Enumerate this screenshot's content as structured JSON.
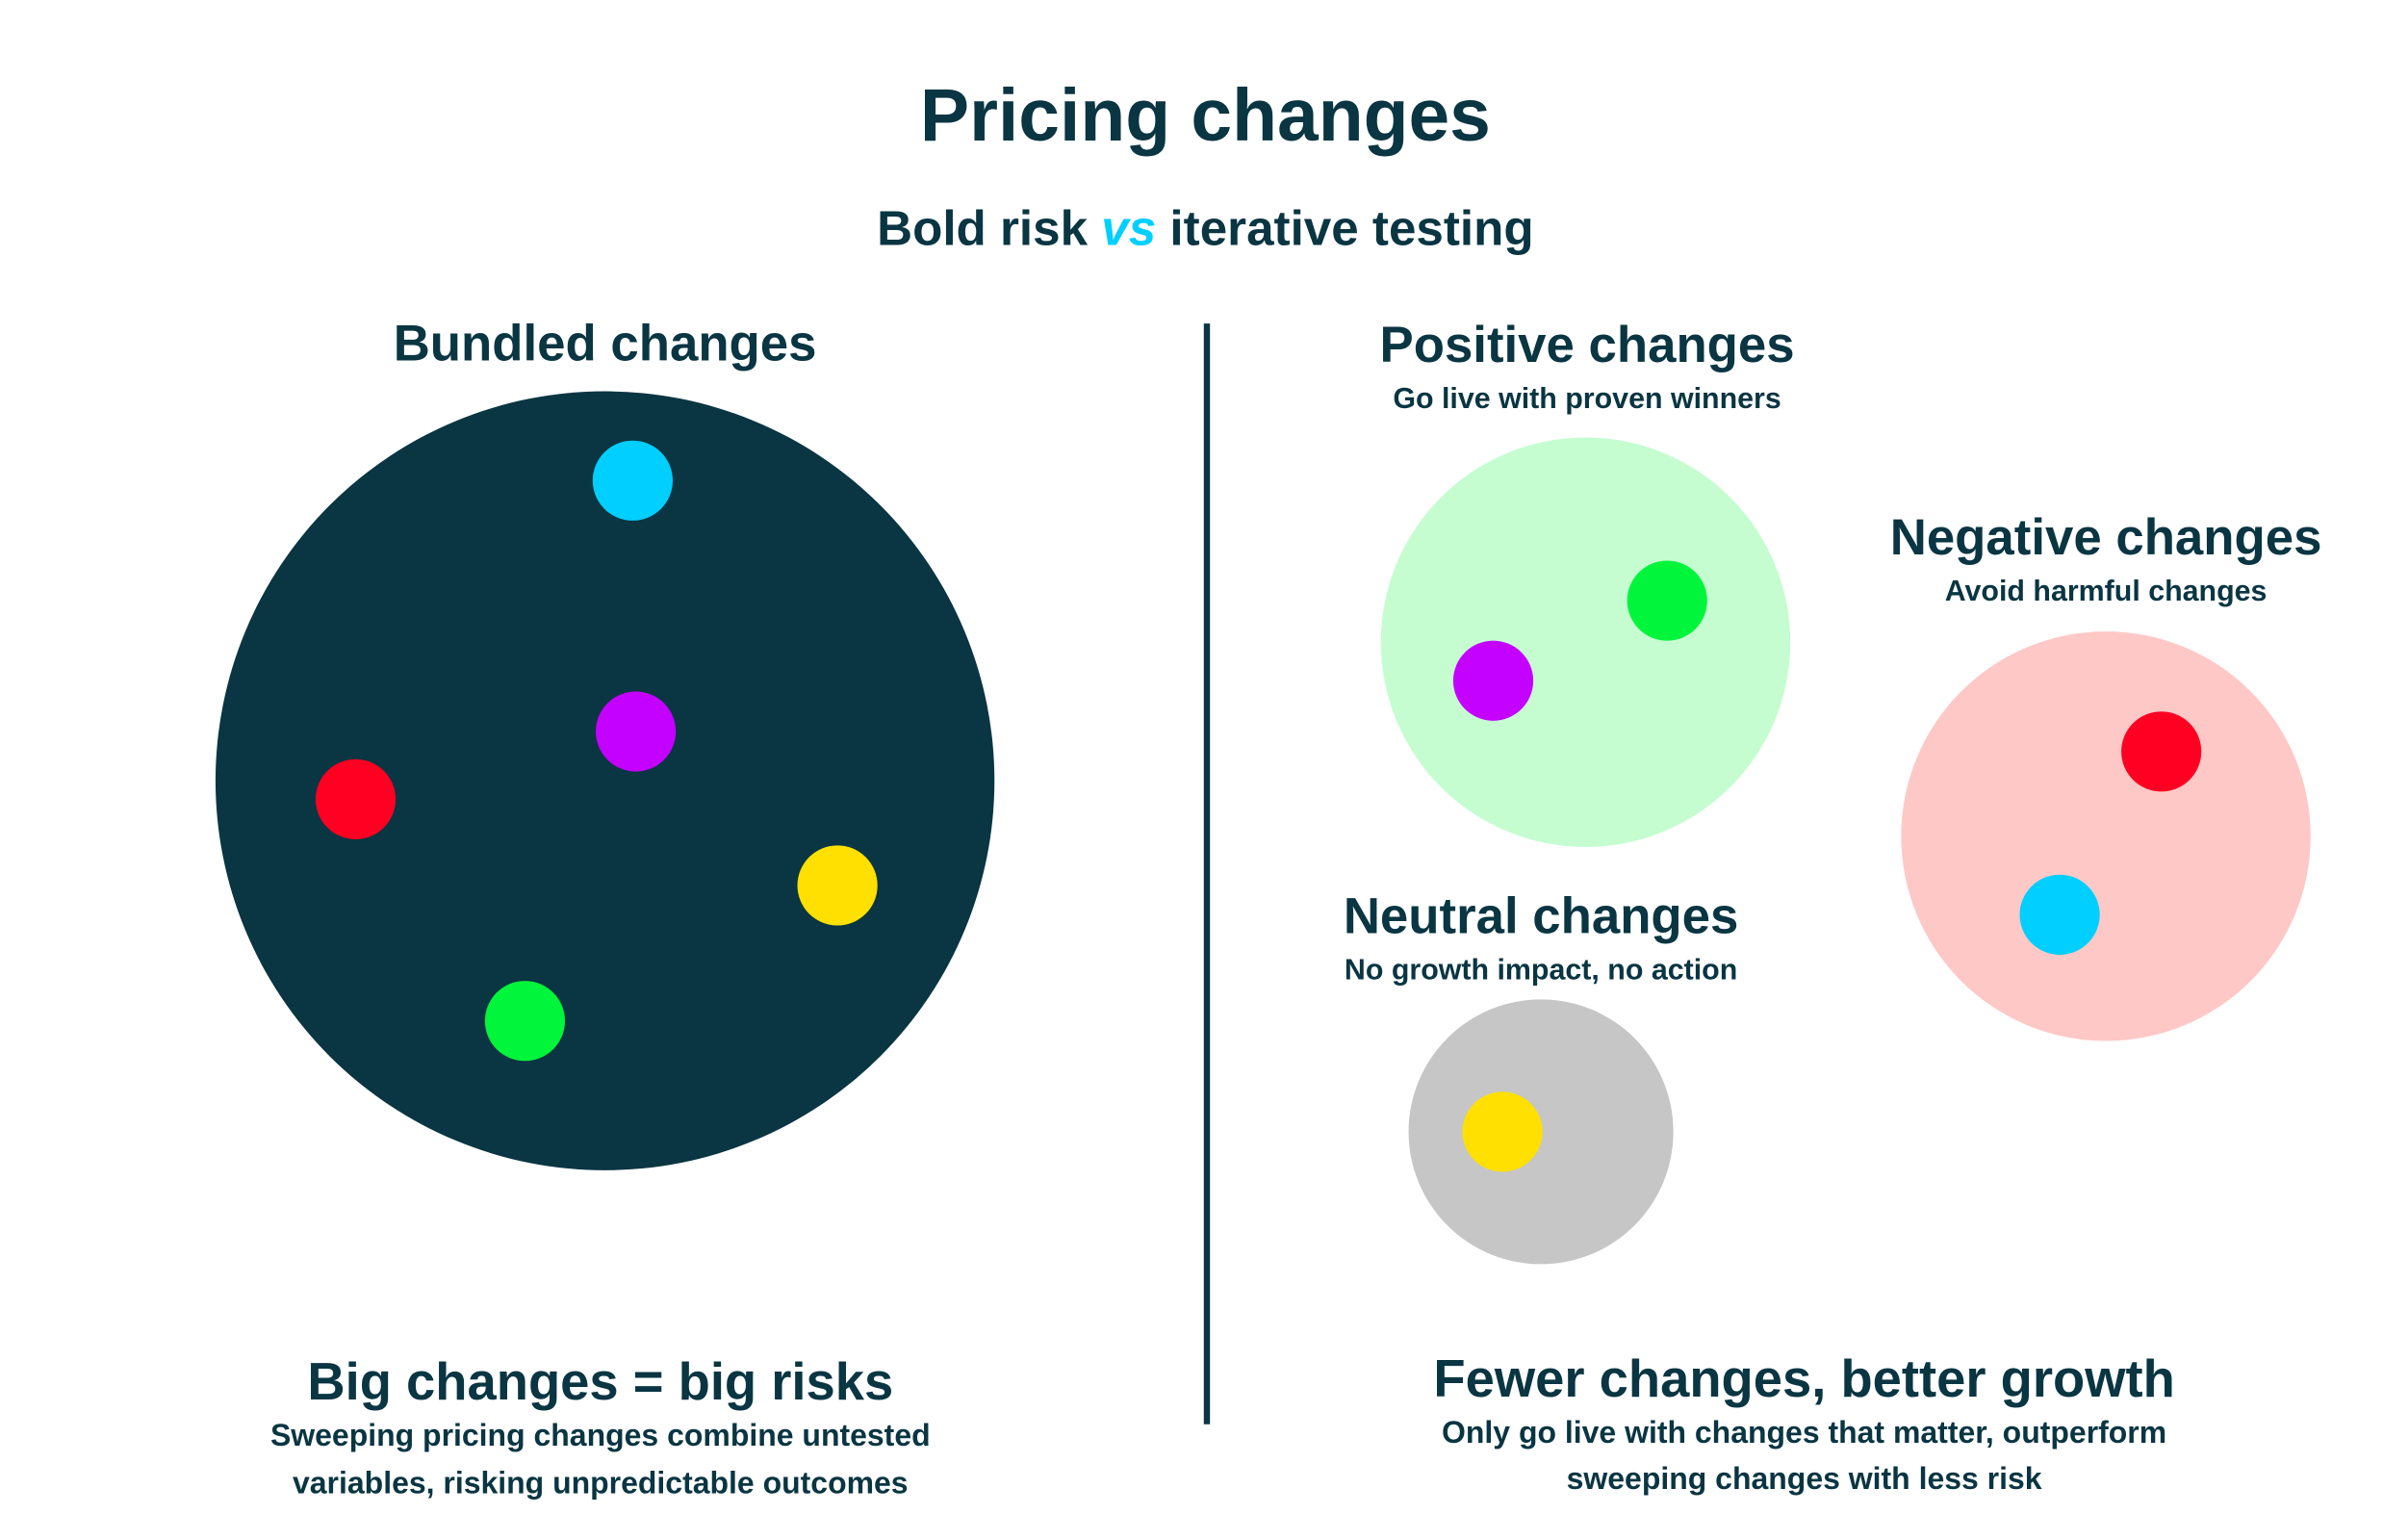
{
  "header": {
    "title": "Pricing changes",
    "subtitle": [
      "Bold risk ",
      "vs",
      " iterative testing"
    ]
  },
  "left": {
    "heading": "Bundled changes",
    "footer": {
      "title": "Big changes = big risks",
      "lines": [
        "Sweeping pricing changes combine untested",
        "variables, risking unpredictable outcomes"
      ]
    }
  },
  "right": {
    "groups": [
      {
        "heading": "Positive changes",
        "caption": "Go live with proven winners"
      },
      {
        "heading": "Negative changes",
        "caption": "Avoid harmful changes"
      },
      {
        "heading": "Neutral changes",
        "caption": "No growth impact, no action"
      }
    ],
    "footer": {
      "title": "Fewer changes, better growth",
      "lines": [
        "Only go live with changes that matter, outperform",
        "sweeping changes with less risk"
      ]
    }
  }
}
